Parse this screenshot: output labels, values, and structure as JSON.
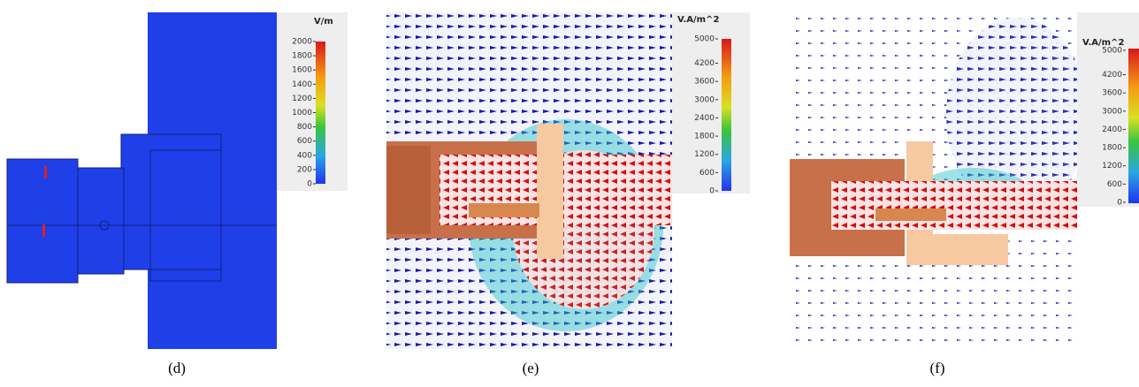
{
  "panels": [
    {
      "label": "(d)",
      "colorbar": {
        "unit": "V/m",
        "ticks": [
          2000,
          1800,
          1600,
          1400,
          1200,
          1000,
          800,
          600,
          400,
          200,
          0
        ]
      }
    },
    {
      "label": "(e)",
      "colorbar": {
        "unit": "V.A/m^2",
        "ticks": [
          5000,
          4200,
          3600,
          3000,
          2400,
          1800,
          1200,
          600,
          0
        ]
      }
    },
    {
      "label": "(f)",
      "colorbar": {
        "unit": "V.A/m^2",
        "ticks": [
          5000,
          4200,
          3600,
          3000,
          2400,
          1800,
          1200,
          600,
          0
        ]
      }
    }
  ]
}
